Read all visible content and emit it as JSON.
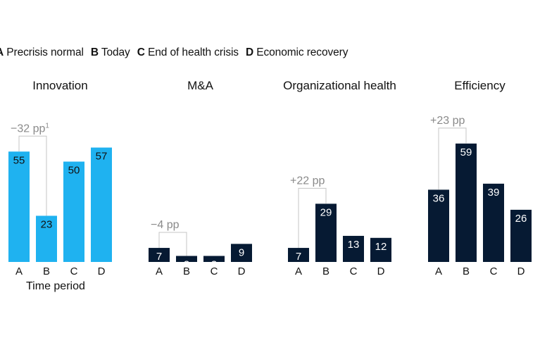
{
  "legend": {
    "items": [
      {
        "key": "A",
        "label": "Precrisis normal"
      },
      {
        "key": "B",
        "label": "Today"
      },
      {
        "key": "C",
        "label": "End of health crisis"
      },
      {
        "key": "D",
        "label": "Economic recovery"
      }
    ]
  },
  "chart_data": {
    "type": "bar",
    "xlabel": "Time period",
    "categories": [
      "A",
      "B",
      "C",
      "D"
    ],
    "shared_ylim": [
      0,
      60
    ],
    "panels": [
      {
        "title": "Innovation",
        "values": [
          55,
          23,
          50,
          57
        ],
        "color": "#1fb2f0",
        "annotation": {
          "text": "−32 pp",
          "superscript": "1",
          "from": "A",
          "to": "B"
        }
      },
      {
        "title": "M&A",
        "values": [
          7,
          3,
          3,
          9
        ],
        "color": "#061a33",
        "annotation": {
          "text": "−4 pp",
          "superscript": "",
          "from": "A",
          "to": "B"
        }
      },
      {
        "title": "Organizational health",
        "values": [
          7,
          29,
          13,
          12
        ],
        "color": "#061a33",
        "annotation": {
          "text": "+22 pp",
          "superscript": "",
          "from": "A",
          "to": "B"
        }
      },
      {
        "title": "Efficiency",
        "values": [
          36,
          59,
          39,
          26
        ],
        "color": "#061a33",
        "annotation": {
          "text": "+23 pp",
          "superscript": "",
          "from": "A",
          "to": "B"
        }
      }
    ]
  }
}
